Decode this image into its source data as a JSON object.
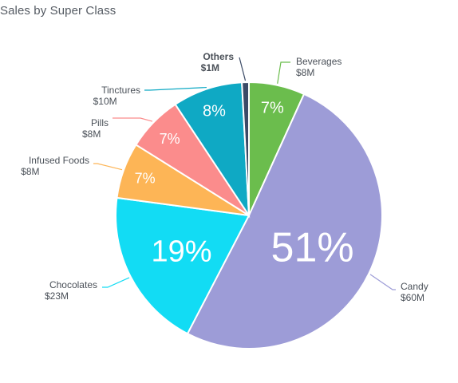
{
  "title": "Sales by Super Class",
  "chart_data": {
    "type": "pie",
    "title": "Sales by Super Class",
    "unit": "$M",
    "slices": [
      {
        "name": "Beverages",
        "value_label": "$8M",
        "value": 8,
        "percent_label": "7%",
        "percent": 7,
        "color": "#6bbd4d"
      },
      {
        "name": "Candy",
        "value_label": "$60M",
        "value": 60,
        "percent_label": "51%",
        "percent": 51,
        "color": "#9d9cd7"
      },
      {
        "name": "Chocolates",
        "value_label": "$23M",
        "value": 23,
        "percent_label": "19%",
        "percent": 19,
        "color": "#12dcf4"
      },
      {
        "name": "Infused Foods",
        "value_label": "$8M",
        "value": 8,
        "percent_label": "7%",
        "percent": 7,
        "color": "#fdb556"
      },
      {
        "name": "Pills",
        "value_label": "$8M",
        "value": 8,
        "percent_label": "7%",
        "percent": 7,
        "color": "#fb8c8c"
      },
      {
        "name": "Tinctures",
        "value_label": "$10M",
        "value": 10,
        "percent_label": "8%",
        "percent": 8,
        "color": "#0fa9c4"
      },
      {
        "name": "Others",
        "value_label": "$1M",
        "value": 1,
        "percent_label": "",
        "percent": 1,
        "color": "#3b4a66"
      }
    ]
  }
}
